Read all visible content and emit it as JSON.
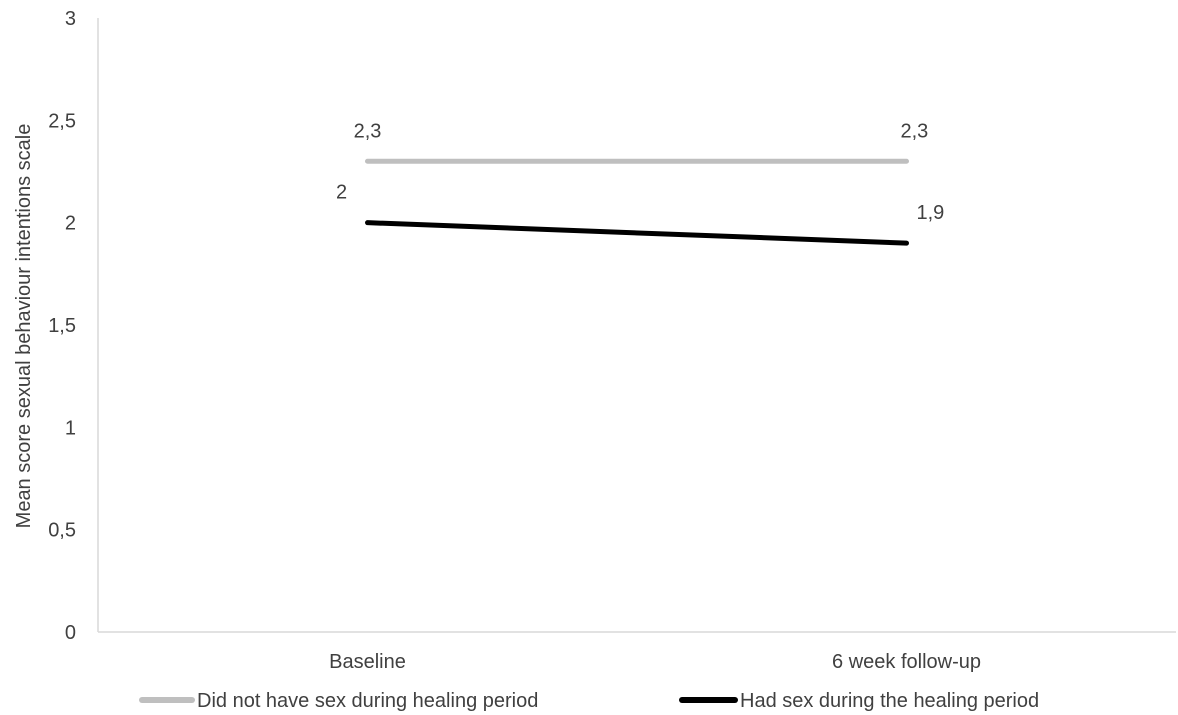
{
  "chart_data": {
    "type": "line",
    "title": "",
    "xlabel": "",
    "ylabel": "Mean score sexual behaviour intentions scale",
    "categories": [
      "Baseline",
      "6 week follow-up"
    ],
    "ylim": [
      0,
      3
    ],
    "yticks": [
      0,
      0.5,
      1,
      1.5,
      2,
      2.5,
      3
    ],
    "ytick_labels": [
      "0",
      "0,5",
      "1",
      "1,5",
      "2",
      "2,5",
      "3"
    ],
    "grid": false,
    "legend_position": "bottom",
    "series": [
      {
        "name": "Did not have sex during healing period",
        "values": [
          2.3,
          2.3
        ],
        "labels": [
          "2,3",
          "2,3"
        ],
        "color": "#bfbfbf"
      },
      {
        "name": "Had sex during the healing period",
        "values": [
          2.0,
          1.9
        ],
        "labels": [
          "2",
          "1,9"
        ],
        "color": "#000000"
      }
    ],
    "axis_color": "#d9d9d9",
    "text_color": "#404040"
  }
}
